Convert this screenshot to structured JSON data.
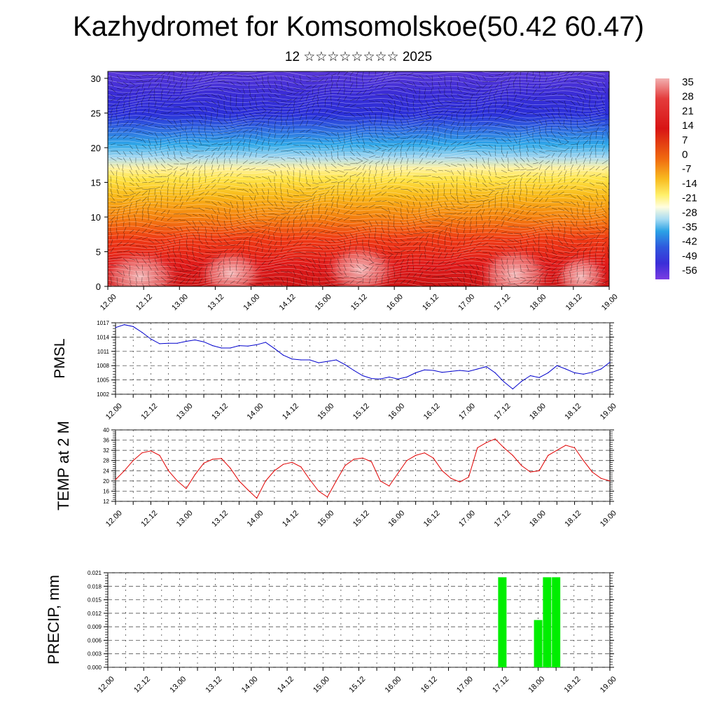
{
  "title": "Kazhydromet for Komsomolskoe(50.42 60.47)",
  "subtitle": "12 ☆☆☆☆☆☆☆☆ 2025",
  "time_labels": [
    "12.00",
    "12.12",
    "13.00",
    "13.12",
    "14.00",
    "14.12",
    "15.00",
    "15.12",
    "16.00",
    "16.12",
    "17.00",
    "17.12",
    "18.00",
    "18.12",
    "19.00"
  ],
  "chart_data": [
    {
      "type": "heatmap",
      "x_labels": [
        "12.00",
        "12.12",
        "13.00",
        "13.12",
        "14.00",
        "14.12",
        "15.00",
        "15.12",
        "16.00",
        "16.12",
        "17.00",
        "17.12",
        "18.00",
        "18.12",
        "19.00"
      ],
      "y_ticks": [
        "0",
        "5",
        "10",
        "15",
        "20",
        "25",
        "30"
      ],
      "ylim": [
        0,
        31
      ],
      "colorbar_labels": [
        "35",
        "28",
        "21",
        "14",
        "7",
        "0",
        "-7",
        "-14",
        "-21",
        "-28",
        "-35",
        "-42",
        "-49",
        "-56"
      ],
      "temperature_profile": [
        {
          "level": 0,
          "value": 26
        },
        {
          "level": 5,
          "value": 24
        },
        {
          "level": 10,
          "value": 10
        },
        {
          "level": 15,
          "value": -8
        },
        {
          "level": 20,
          "value": -25
        },
        {
          "level": 25,
          "value": -50
        },
        {
          "level": 31,
          "value": -55
        }
      ],
      "overlay": "wind vectors and isolines"
    },
    {
      "type": "line",
      "ylabel": "PMSL",
      "yticks": [
        1002,
        1005,
        1008,
        1011,
        1014,
        1017
      ],
      "ylim": [
        1002,
        1017
      ],
      "color": "#0000cc",
      "x_hours": [
        0,
        3,
        6,
        9,
        12,
        15,
        18,
        21,
        24,
        27,
        30,
        33,
        36,
        39,
        42,
        45,
        48,
        51,
        54,
        57,
        60,
        63,
        66,
        69,
        72,
        75,
        78,
        81,
        84,
        87,
        90,
        93,
        96,
        99,
        102,
        105,
        108,
        111,
        114,
        117,
        120,
        123,
        126,
        129,
        132,
        135,
        138,
        141,
        144,
        147,
        150,
        153,
        156,
        159,
        162,
        165,
        168
      ],
      "values": [
        1016.0,
        1016.6,
        1016.2,
        1015.0,
        1013.6,
        1012.6,
        1012.7,
        1012.7,
        1013.1,
        1013.4,
        1013.0,
        1012.2,
        1011.7,
        1011.7,
        1012.2,
        1012.1,
        1012.4,
        1012.9,
        1011.6,
        1010.2,
        1009.4,
        1009.2,
        1009.2,
        1008.6,
        1008.9,
        1009.2,
        1008.2,
        1007.0,
        1005.9,
        1005.3,
        1005.2,
        1005.6,
        1005.2,
        1005.6,
        1006.5,
        1007.1,
        1007.0,
        1006.6,
        1006.8,
        1007.0,
        1006.8,
        1007.3,
        1007.8,
        1006.5,
        1004.6,
        1003.1,
        1004.7,
        1005.9,
        1005.5,
        1006.5,
        1008.0,
        1007.3,
        1006.5,
        1006.2,
        1006.6,
        1007.3,
        1008.7
      ]
    },
    {
      "type": "line",
      "ylabel": "TEMP at 2 M",
      "yticks": [
        12,
        16,
        20,
        24,
        28,
        32,
        36,
        40
      ],
      "ylim": [
        12,
        40
      ],
      "color": "#e00000",
      "x_hours": [
        0,
        3,
        6,
        9,
        12,
        15,
        18,
        21,
        24,
        27,
        30,
        33,
        36,
        39,
        42,
        45,
        48,
        51,
        54,
        57,
        60,
        63,
        66,
        69,
        72,
        75,
        78,
        81,
        84,
        87,
        90,
        93,
        96,
        99,
        102,
        105,
        108,
        111,
        114,
        117,
        120,
        123,
        126,
        129,
        132,
        135,
        138,
        141,
        144,
        147,
        150,
        153,
        156,
        159,
        162,
        165,
        168
      ],
      "values": [
        20.5,
        24.0,
        28.0,
        31.0,
        31.8,
        30.0,
        24.0,
        20.0,
        17.0,
        22.5,
        27.0,
        28.5,
        28.8,
        25.0,
        20.0,
        16.5,
        13.2,
        20.0,
        24.0,
        26.5,
        27.3,
        25.5,
        20.5,
        16.0,
        13.7,
        20.0,
        26.0,
        28.5,
        29.0,
        27.5,
        20.0,
        18.0,
        23.0,
        28.0,
        30.0,
        31.0,
        29.0,
        24.0,
        21.0,
        19.6,
        21.5,
        33.0,
        35.0,
        36.5,
        33.0,
        30.0,
        26.0,
        23.5,
        24.0,
        30.0,
        32.0,
        34.0,
        33.0,
        28.0,
        23.5,
        21.0,
        20.0
      ]
    },
    {
      "type": "bar",
      "ylabel": "PRECIP, mm",
      "yticks": [
        "0.000",
        "0.003",
        "0.006",
        "0.009",
        "0.012",
        "0.015",
        "0.018",
        "0.021"
      ],
      "ylim": [
        0,
        0.021
      ],
      "color": "#00ee00",
      "x_hours": [
        132,
        144,
        147,
        150
      ],
      "values": [
        0.02,
        0.0105,
        0.02,
        0.02
      ]
    }
  ]
}
